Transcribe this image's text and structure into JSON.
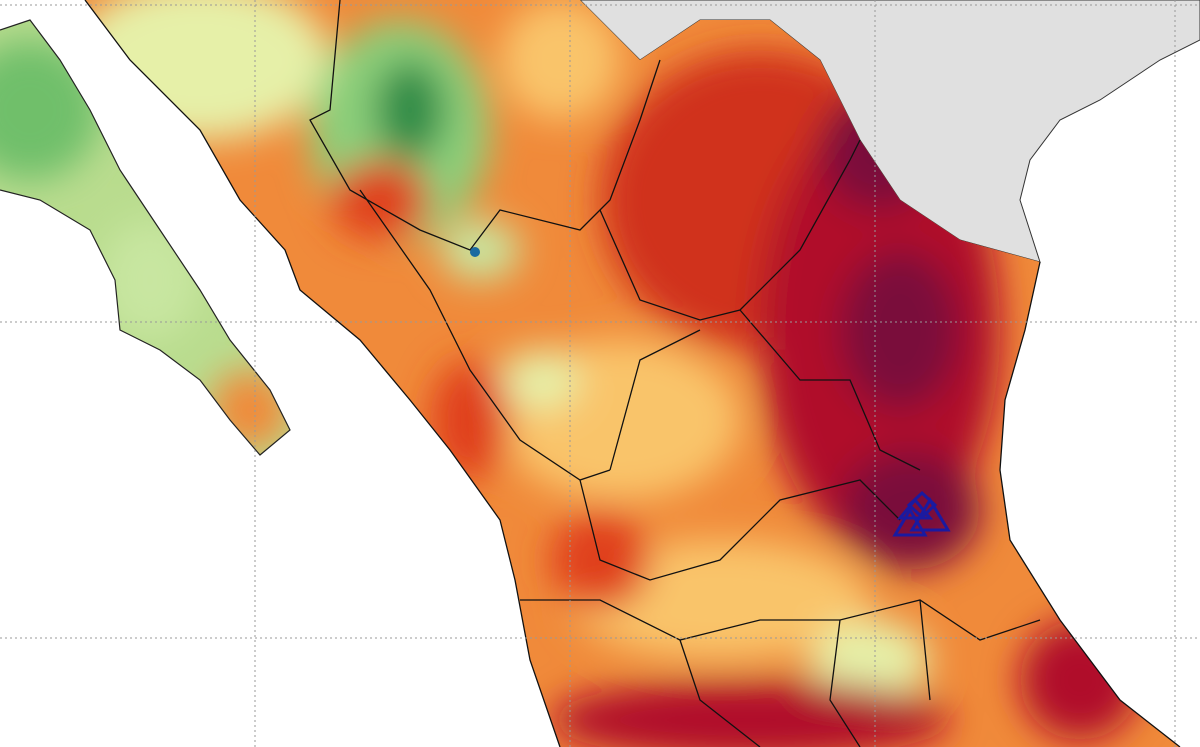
{
  "map": {
    "colors": {
      "ocean": "#ffffff",
      "neighbor_land": "#e0e0e0",
      "very_wet": "#1a7a3a",
      "wet": "#6fbf6a",
      "slightly_wet": "#c8e6a0",
      "neutral": "#f5f0b8",
      "slightly_dry": "#f9c46a",
      "dry": "#f08a3a",
      "very_dry": "#e0401e",
      "extreme_dry": "#b0102a",
      "exceptional_dry": "#7a0b3a",
      "boundaries": "#111111",
      "grid": "#999999",
      "marker": "#1a1aa0"
    },
    "marker_icon": "triangle-cluster-marker"
  }
}
